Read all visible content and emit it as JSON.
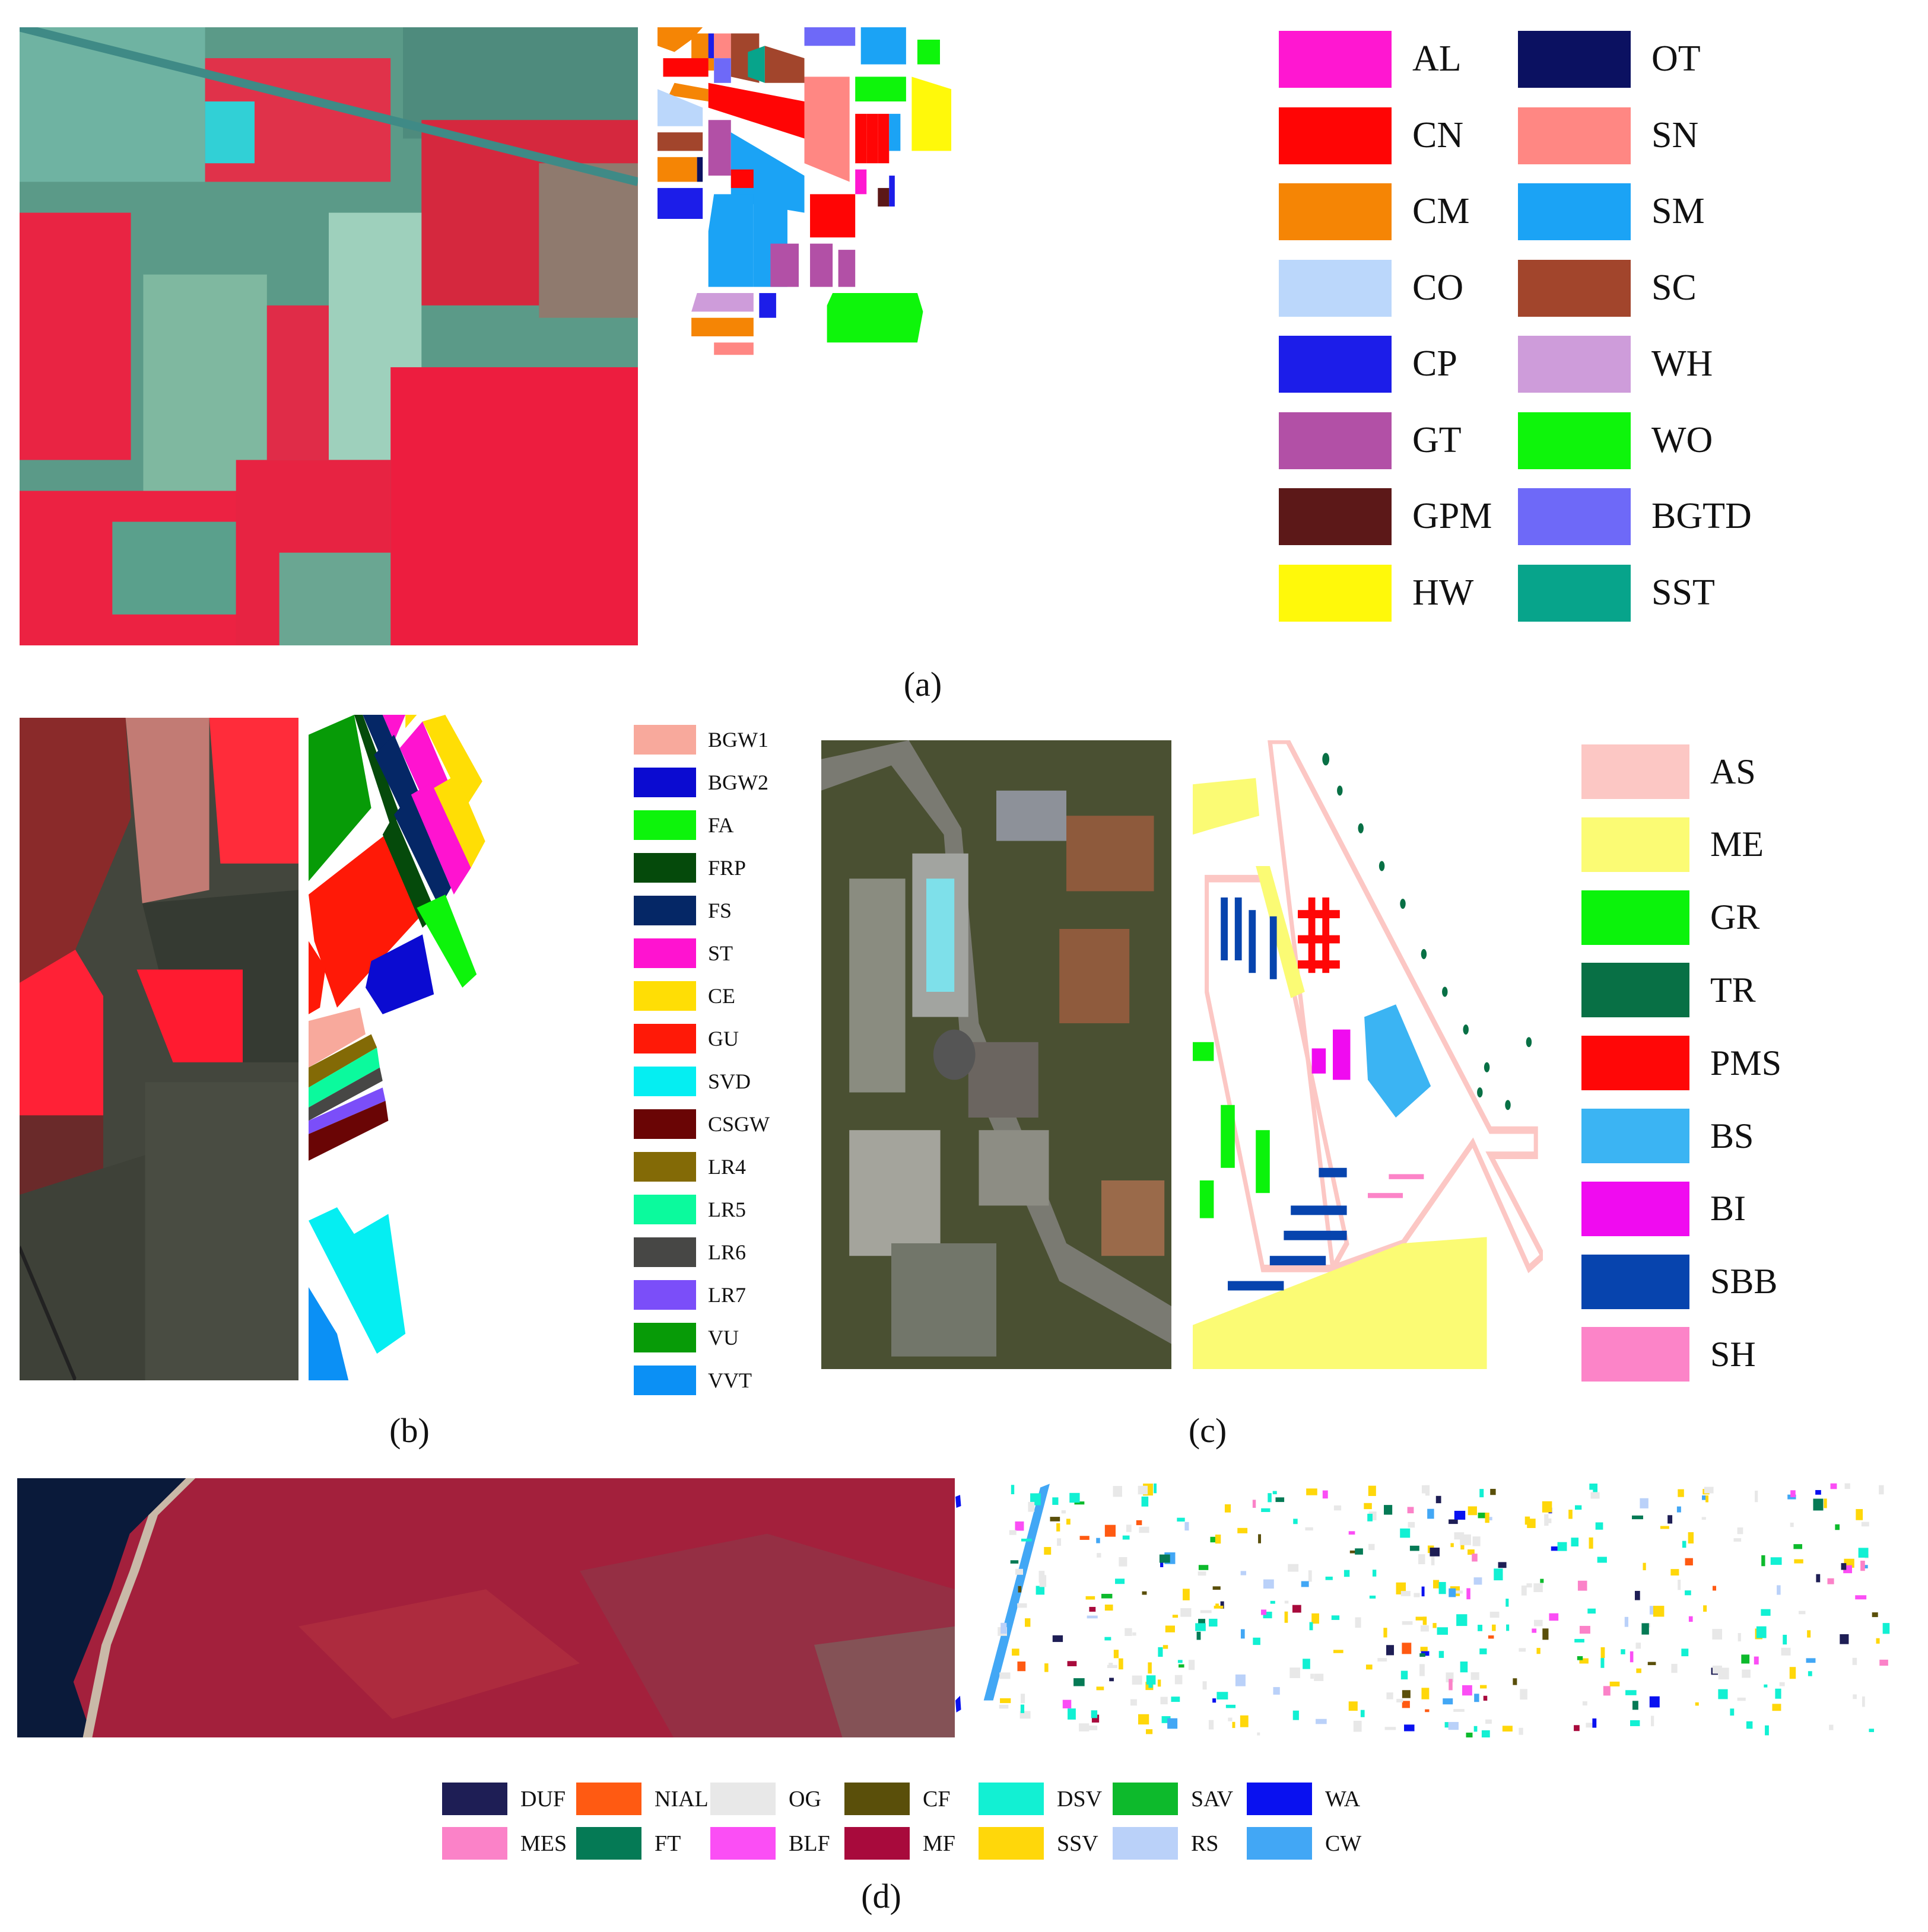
{
  "captions": {
    "a": "(a)",
    "b": "(b)",
    "c": "(c)",
    "d": "(d)"
  },
  "panel_a": {
    "legend": [
      {
        "code": "AL",
        "color": "#FF17D1"
      },
      {
        "code": "OT",
        "color": "#0B1161"
      },
      {
        "code": "CN",
        "color": "#FF0505"
      },
      {
        "code": "SN",
        "color": "#FF8783"
      },
      {
        "code": "CM",
        "color": "#F58505"
      },
      {
        "code": "SM",
        "color": "#1BA3F5"
      },
      {
        "code": "CO",
        "color": "#BBD7FB"
      },
      {
        "code": "SC",
        "color": "#A2452C"
      },
      {
        "code": "CP",
        "color": "#1C1DE9"
      },
      {
        "code": "WH",
        "color": "#CE9CDA"
      },
      {
        "code": "GT",
        "color": "#B250A6"
      },
      {
        "code": "WO",
        "color": "#0EF50B"
      },
      {
        "code": "GPM",
        "color": "#5C1818"
      },
      {
        "code": "BGTD",
        "color": "#6E69F8"
      },
      {
        "code": "HW",
        "color": "#FFF90A"
      },
      {
        "code": "SST",
        "color": "#07A48B"
      }
    ]
  },
  "panel_b": {
    "legend": [
      {
        "code": "BGW1",
        "color": "#F8A99C"
      },
      {
        "code": "BGW2",
        "color": "#0B0BD1"
      },
      {
        "code": "FA",
        "color": "#0DF40B"
      },
      {
        "code": "FRP",
        "color": "#054A0B"
      },
      {
        "code": "FS",
        "color": "#052766"
      },
      {
        "code": "ST",
        "color": "#FF13D0"
      },
      {
        "code": "CE",
        "color": "#FFDE05"
      },
      {
        "code": "GU",
        "color": "#FF1907"
      },
      {
        "code": "SVD",
        "color": "#05EEF2"
      },
      {
        "code": "CSGW",
        "color": "#6A0505"
      },
      {
        "code": "LR4",
        "color": "#836A06"
      },
      {
        "code": "LR5",
        "color": "#0BFA9D"
      },
      {
        "code": "LR6",
        "color": "#474745"
      },
      {
        "code": "LR7",
        "color": "#7B4EF9"
      },
      {
        "code": "VU",
        "color": "#079B07"
      },
      {
        "code": "VVT",
        "color": "#0B90F5"
      }
    ]
  },
  "panel_c": {
    "legend": [
      {
        "code": "AS",
        "color": "#FCC7C4"
      },
      {
        "code": "ME",
        "color": "#FBFB74"
      },
      {
        "code": "GR",
        "color": "#0BF30B"
      },
      {
        "code": "TR",
        "color": "#087045"
      },
      {
        "code": "PMS",
        "color": "#FF0707"
      },
      {
        "code": "BS",
        "color": "#3BB4F3"
      },
      {
        "code": "BI",
        "color": "#F00BF0"
      },
      {
        "code": "SBB",
        "color": "#0744AE"
      },
      {
        "code": "SH",
        "color": "#FC84C8"
      }
    ]
  },
  "panel_d": {
    "legend": [
      {
        "code": "DUF",
        "color": "#1E1E55"
      },
      {
        "code": "NIAL",
        "color": "#FF5A12"
      },
      {
        "code": "OG",
        "color": "#E8E8E8"
      },
      {
        "code": "CF",
        "color": "#5A4F0A"
      },
      {
        "code": "DSV",
        "color": "#12F0D3"
      },
      {
        "code": "SAV",
        "color": "#0DBA2C"
      },
      {
        "code": "WA",
        "color": "#0911F0"
      },
      {
        "code": "MES",
        "color": "#FB82C8"
      },
      {
        "code": "FT",
        "color": "#057A55"
      },
      {
        "code": "BLF",
        "color": "#FB4EF5"
      },
      {
        "code": "MF",
        "color": "#A80A3C"
      },
      {
        "code": "SSV",
        "color": "#FFD70A"
      },
      {
        "code": "RS",
        "color": "#BAD1F9"
      },
      {
        "code": "CW",
        "color": "#42A7F5"
      }
    ]
  }
}
